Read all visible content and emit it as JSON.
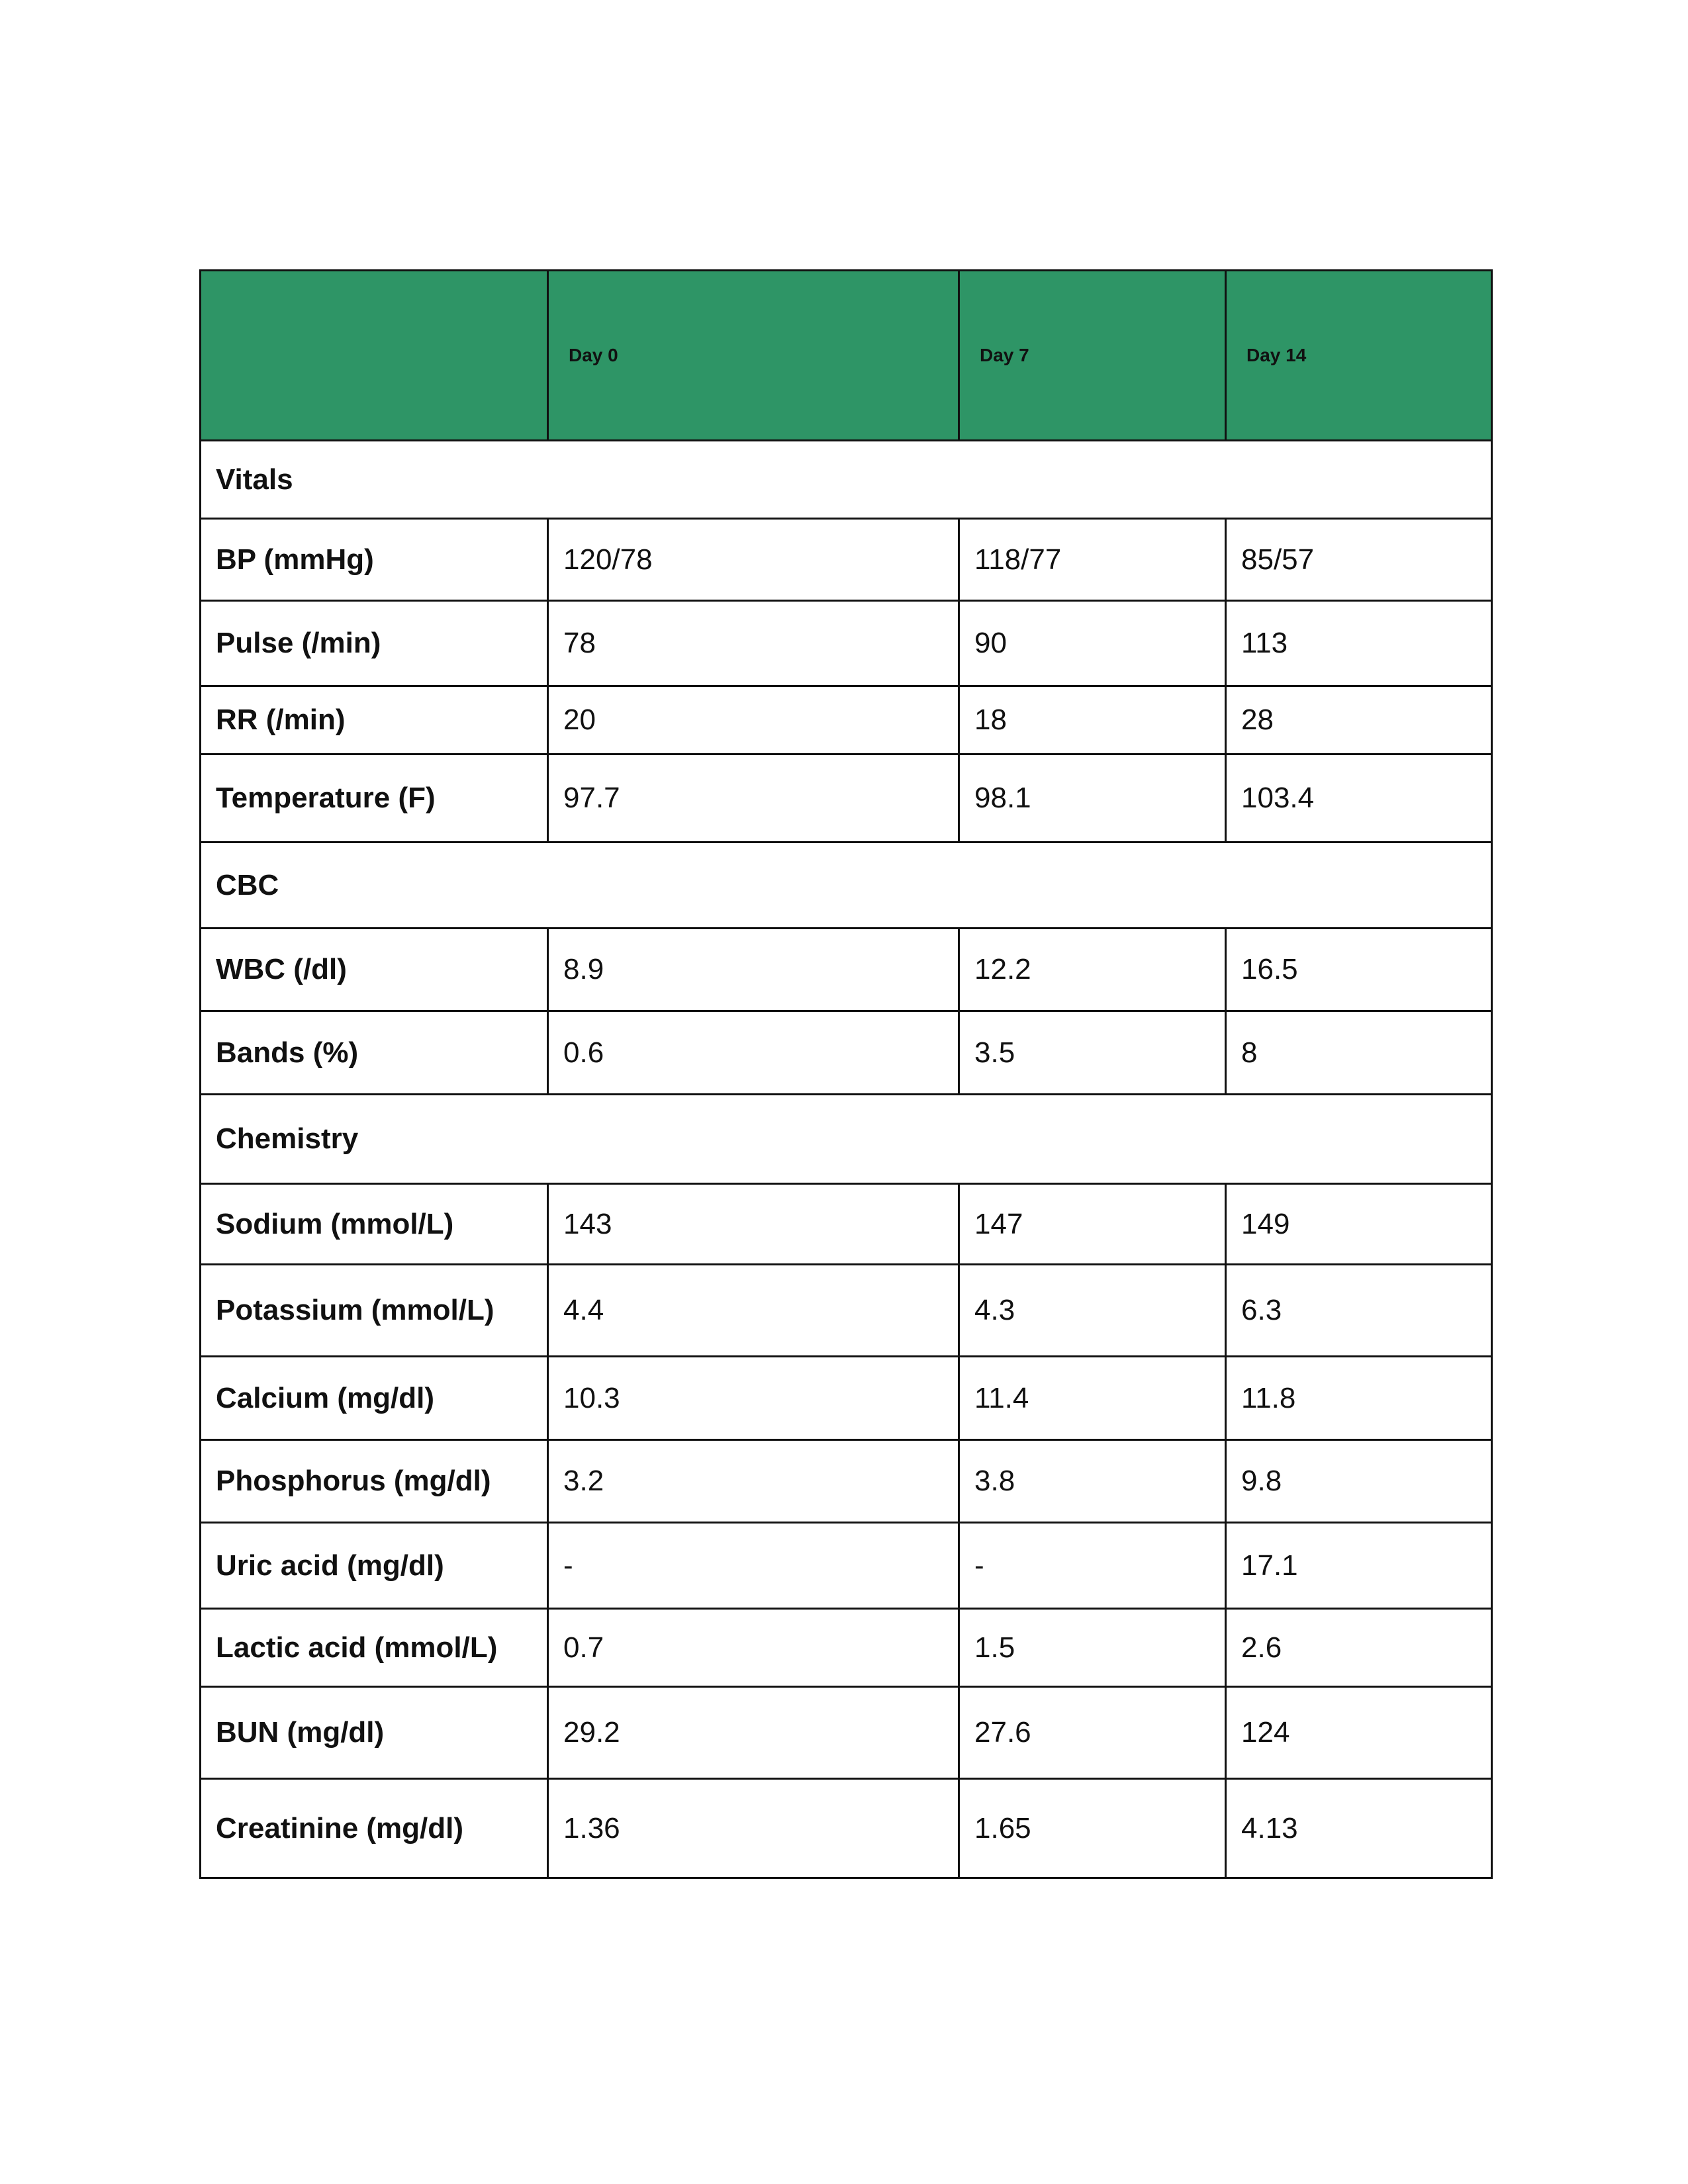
{
  "table": {
    "columns": [
      "Day 0",
      "Day 7",
      "Day 14"
    ],
    "rows": [
      {
        "section": "Vitals"
      },
      {
        "label": "BP (mmHg)",
        "values": [
          "120/78",
          "118/77",
          "85/57"
        ]
      },
      {
        "label": "Pulse (/min)",
        "values": [
          "78",
          "90",
          "113"
        ]
      },
      {
        "label": "RR (/min)",
        "values": [
          "20",
          "18",
          "28"
        ]
      },
      {
        "label": "Temperature (F)",
        "values": [
          "97.7",
          "98.1",
          "103.4"
        ]
      },
      {
        "section": "CBC"
      },
      {
        "label": "WBC (/dl)",
        "values": [
          "8.9",
          "12.2",
          "16.5"
        ]
      },
      {
        "label": "Bands (%)",
        "values": [
          "0.6",
          "3.5",
          "8"
        ]
      },
      {
        "section": "Chemistry"
      },
      {
        "label": "Sodium (mmol/L)",
        "values": [
          "143",
          "147",
          "149"
        ]
      },
      {
        "label": "Potassium (mmol/L)",
        "values": [
          "4.4",
          "4.3",
          "6.3"
        ]
      },
      {
        "label": "Calcium (mg/dl)",
        "values": [
          "10.3",
          "11.4",
          "11.8"
        ]
      },
      {
        "label": "Phosphorus (mg/dl)",
        "values": [
          "3.2",
          "3.8",
          "9.8"
        ]
      },
      {
        "label": "Uric acid (mg/dl)",
        "values": [
          "-",
          "-",
          "17.1"
        ]
      },
      {
        "label": "Lactic acid (mmol/L)",
        "values": [
          "0.7",
          "1.5",
          "2.6"
        ]
      },
      {
        "label": "BUN (mg/dl)",
        "values": [
          "29.2",
          "27.6",
          "124"
        ]
      },
      {
        "label": "Creatinine (mg/dl)",
        "values": [
          "1.36",
          "1.65",
          "4.13"
        ]
      }
    ]
  }
}
